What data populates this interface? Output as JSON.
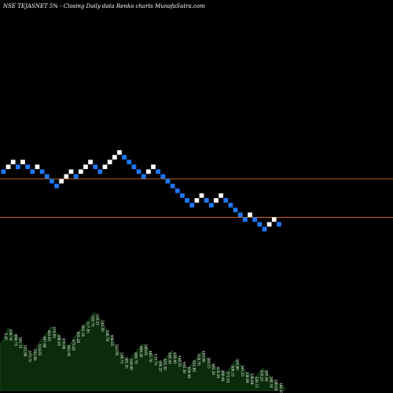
{
  "chart_data": {
    "type": "renko",
    "title": "NSE TEJASNET 5% - Closing Daily data Renko charts MunafaSutra.com",
    "colors": {
      "background": "#000000",
      "up_brick": "#ffffff",
      "down_brick": "#1e78ff",
      "support_line": "#c86414",
      "volume_fill": "#0b2c0b",
      "volume_stroke": "#1f5a1f"
    },
    "bricks": [
      {
        "level": 0,
        "dir": "down"
      },
      {
        "level": 1,
        "dir": "up"
      },
      {
        "level": 2,
        "dir": "up"
      },
      {
        "level": 1,
        "dir": "down"
      },
      {
        "level": 2,
        "dir": "up"
      },
      {
        "level": 1,
        "dir": "down"
      },
      {
        "level": 0,
        "dir": "down"
      },
      {
        "level": 1,
        "dir": "up"
      },
      {
        "level": 0,
        "dir": "down"
      },
      {
        "level": -1,
        "dir": "down"
      },
      {
        "level": -2,
        "dir": "down"
      },
      {
        "level": -3,
        "dir": "down"
      },
      {
        "level": -2,
        "dir": "up"
      },
      {
        "level": -1,
        "dir": "up"
      },
      {
        "level": 0,
        "dir": "up"
      },
      {
        "level": -1,
        "dir": "down"
      },
      {
        "level": 0,
        "dir": "up"
      },
      {
        "level": 1,
        "dir": "up"
      },
      {
        "level": 2,
        "dir": "up"
      },
      {
        "level": 1,
        "dir": "down"
      },
      {
        "level": 0,
        "dir": "down"
      },
      {
        "level": 1,
        "dir": "up"
      },
      {
        "level": 2,
        "dir": "up"
      },
      {
        "level": 3,
        "dir": "up"
      },
      {
        "level": 4,
        "dir": "up"
      },
      {
        "level": 3,
        "dir": "down"
      },
      {
        "level": 2,
        "dir": "down"
      },
      {
        "level": 1,
        "dir": "down"
      },
      {
        "level": 0,
        "dir": "down"
      },
      {
        "level": -1,
        "dir": "down"
      },
      {
        "level": 0,
        "dir": "up"
      },
      {
        "level": 1,
        "dir": "up"
      },
      {
        "level": 0,
        "dir": "down"
      },
      {
        "level": -1,
        "dir": "down"
      },
      {
        "level": -2,
        "dir": "down"
      },
      {
        "level": -3,
        "dir": "down"
      },
      {
        "level": -4,
        "dir": "down"
      },
      {
        "level": -5,
        "dir": "down"
      },
      {
        "level": -6,
        "dir": "down"
      },
      {
        "level": -7,
        "dir": "down"
      },
      {
        "level": -6,
        "dir": "up"
      },
      {
        "level": -5,
        "dir": "up"
      },
      {
        "level": -6,
        "dir": "down"
      },
      {
        "level": -7,
        "dir": "down"
      },
      {
        "level": -6,
        "dir": "up"
      },
      {
        "level": -5,
        "dir": "up"
      },
      {
        "level": -6,
        "dir": "down"
      },
      {
        "level": -7,
        "dir": "down"
      },
      {
        "level": -8,
        "dir": "down"
      },
      {
        "level": -9,
        "dir": "down"
      },
      {
        "level": -10,
        "dir": "down"
      },
      {
        "level": -9,
        "dir": "up"
      },
      {
        "level": -10,
        "dir": "down"
      },
      {
        "level": -11,
        "dir": "down"
      },
      {
        "level": -12,
        "dir": "down"
      },
      {
        "level": -11,
        "dir": "up"
      },
      {
        "level": -10,
        "dir": "up"
      },
      {
        "level": -11,
        "dir": "down"
      }
    ],
    "support_levels": [
      -1.5,
      -9.5
    ],
    "volume_profile": [
      58,
      62,
      70,
      78,
      75,
      68,
      72,
      65,
      60,
      55,
      52,
      48,
      45,
      50,
      56,
      62,
      66,
      70,
      74,
      80,
      78,
      72,
      68,
      64,
      60,
      55,
      58,
      62,
      68,
      72,
      76,
      80,
      84,
      88,
      92,
      98,
      94,
      90,
      86,
      80,
      74,
      68,
      62,
      56,
      50,
      46,
      42,
      40,
      38,
      42,
      46,
      50,
      54,
      58,
      56,
      52,
      48,
      44,
      40,
      36,
      34,
      38,
      42,
      46,
      50,
      46,
      42,
      38,
      34,
      30,
      28,
      32,
      36,
      40,
      44,
      48,
      44,
      40,
      36,
      32,
      30,
      28,
      26,
      24,
      22,
      26,
      30,
      34,
      38,
      34,
      30,
      26,
      22,
      20,
      18,
      16,
      20,
      24,
      28,
      24,
      20,
      16,
      12,
      10,
      8,
      6,
      4
    ],
    "volume_labels": [
      "5.45",
      "550.70",
      "606.75",
      "581.15",
      "552.90",
      "575.75",
      "532.90",
      "518.65",
      "497.90",
      "483.95",
      "474.95",
      "488.05",
      "476.00",
      "482.45",
      "475.85",
      "505.20",
      "495.10",
      "517.85",
      "536.75",
      "518.25",
      "542.30",
      "520.70",
      "498.55",
      "563.95",
      "530.75",
      "505.35",
      "540.00",
      "488.70",
      "498.20",
      "500.65",
      "485.70",
      "475.75",
      "460.25",
      "455.30",
      "449.30",
      "438.40",
      "440.25",
      "445.30",
      "430.40",
      "425.80",
      "418.70",
      "405.00",
      "395.15",
      "402.30",
      "410.20",
      "380.40",
      "372.65",
      "360.15",
      "355.80",
      "345.25",
      "338.90",
      "330.60",
      "320.15",
      "310.25",
      "305.40",
      "298.10",
      "290.65",
      "282.45"
    ]
  }
}
